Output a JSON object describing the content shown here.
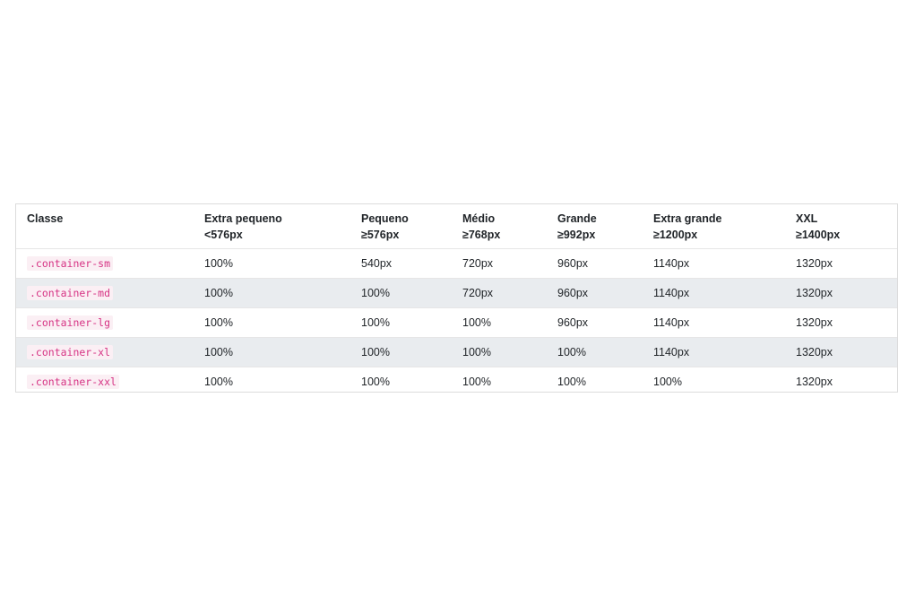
{
  "table": {
    "headers": [
      {
        "title": "Classe",
        "sub": ""
      },
      {
        "title": "Extra pequeno",
        "sub": "<576px"
      },
      {
        "title": "Pequeno",
        "sub": "≥576px"
      },
      {
        "title": "Médio",
        "sub": "≥768px"
      },
      {
        "title": "Grande",
        "sub": "≥992px"
      },
      {
        "title": "Extra grande",
        "sub": "≥1200px"
      },
      {
        "title": "XXL",
        "sub": "≥1400px"
      }
    ],
    "rows": [
      {
        "class": ".container-sm",
        "cells": [
          "100%",
          "540px",
          "720px",
          "960px",
          "1140px",
          "1320px"
        ]
      },
      {
        "class": ".container-md",
        "cells": [
          "100%",
          "100%",
          "720px",
          "960px",
          "1140px",
          "1320px"
        ]
      },
      {
        "class": ".container-lg",
        "cells": [
          "100%",
          "100%",
          "100%",
          "960px",
          "1140px",
          "1320px"
        ]
      },
      {
        "class": ".container-xl",
        "cells": [
          "100%",
          "100%",
          "100%",
          "100%",
          "1140px",
          "1320px"
        ]
      },
      {
        "class": ".container-xxl",
        "cells": [
          "100%",
          "100%",
          "100%",
          "100%",
          "100%",
          "1320px"
        ]
      }
    ]
  }
}
